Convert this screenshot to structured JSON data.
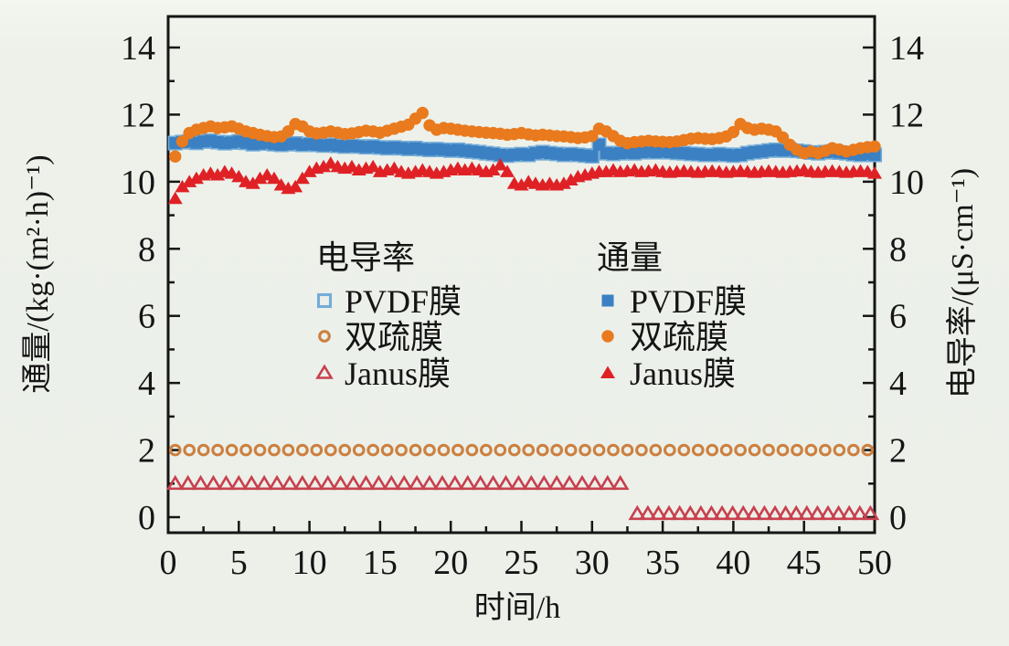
{
  "chart_data": {
    "type": "scatter",
    "title": "",
    "xlabel": "时间/h",
    "ylabel_left": "通量/(kg·(m²·h)⁻¹)",
    "ylabel_right": "电导率/(μS·cm⁻¹)",
    "xlim": [
      0,
      50
    ],
    "ylim": [
      0,
      14
    ],
    "x_major_ticks": [
      0,
      5,
      10,
      15,
      20,
      25,
      30,
      35,
      40,
      45,
      50
    ],
    "x_minor_ticks": [
      2.5,
      7.5,
      12.5,
      17.5,
      22.5,
      27.5,
      32.5,
      37.5,
      42.5,
      47.5
    ],
    "y_major_ticks": [
      0,
      2,
      4,
      6,
      8,
      10,
      12,
      14
    ],
    "y_minor_ticks": [
      1,
      3,
      5,
      7,
      9,
      11,
      13
    ],
    "grid": false,
    "legend": {
      "conductivity_header": "电导率",
      "flux_header": "通量",
      "entries": [
        "PVDF膜",
        "双疏膜",
        "Janus膜"
      ]
    },
    "series": [
      {
        "name": "电导率 PVDF膜",
        "axis": "right",
        "marker": "square",
        "filled": false,
        "color": "#74acd8",
        "note": "hidden behind flux PVDF squares",
        "x0": 0.5,
        "dx": 0.5,
        "y": [
          11.15,
          11.18,
          11.2,
          11.16,
          11.2,
          11.22,
          11.18,
          11.15,
          11.17,
          11.2,
          11.16,
          11.12,
          11.14,
          11.16,
          11.12,
          11.1,
          11.12,
          11.14,
          11.1,
          11.12,
          11.1,
          11.08,
          11.1,
          11.07,
          11.05,
          11.07,
          11.05,
          11.03,
          11.05,
          11.02,
          11.0,
          11.02,
          11.0,
          10.98,
          11.0,
          10.97,
          10.95,
          10.97,
          10.95,
          10.93,
          10.95,
          10.92,
          10.9,
          10.88,
          10.85,
          10.83,
          10.8,
          10.78,
          10.8,
          10.82,
          10.8,
          10.85,
          10.88,
          10.85,
          10.83,
          10.8,
          10.82,
          10.8,
          10.78,
          10.76,
          11.1,
          10.85,
          10.83,
          10.85,
          10.87,
          10.85,
          10.88,
          10.9,
          10.88,
          10.9,
          10.88,
          10.86,
          10.85,
          10.83,
          10.82,
          10.8,
          10.8,
          10.82,
          10.8,
          10.78,
          10.8,
          10.85,
          10.88,
          10.9,
          10.93,
          10.95,
          10.93,
          10.95,
          10.92,
          10.9,
          10.87,
          10.85,
          10.88,
          10.9,
          10.87,
          10.85,
          10.82,
          10.8,
          10.83,
          10.8
        ]
      },
      {
        "name": "通量 PVDF膜",
        "axis": "left",
        "marker": "square",
        "filled": true,
        "color": "#3b80c2",
        "x0": 0.5,
        "dx": 0.5,
        "y": [
          11.15,
          11.18,
          11.2,
          11.16,
          11.2,
          11.22,
          11.18,
          11.15,
          11.17,
          11.2,
          11.16,
          11.12,
          11.14,
          11.16,
          11.12,
          11.1,
          11.12,
          11.14,
          11.1,
          11.12,
          11.1,
          11.08,
          11.1,
          11.07,
          11.05,
          11.07,
          11.05,
          11.03,
          11.05,
          11.02,
          11.0,
          11.02,
          11.0,
          10.98,
          11.0,
          10.97,
          10.95,
          10.97,
          10.95,
          10.93,
          10.95,
          10.92,
          10.9,
          10.88,
          10.85,
          10.83,
          10.8,
          10.78,
          10.8,
          10.82,
          10.8,
          10.85,
          10.88,
          10.85,
          10.83,
          10.8,
          10.82,
          10.8,
          10.78,
          10.76,
          11.1,
          10.85,
          10.83,
          10.85,
          10.87,
          10.85,
          10.88,
          10.9,
          10.88,
          10.9,
          10.88,
          10.86,
          10.85,
          10.83,
          10.82,
          10.8,
          10.8,
          10.82,
          10.8,
          10.78,
          10.8,
          10.85,
          10.88,
          10.9,
          10.93,
          10.95,
          10.93,
          10.95,
          10.92,
          10.9,
          10.87,
          10.85,
          10.88,
          10.9,
          10.87,
          10.85,
          10.82,
          10.8,
          10.83,
          10.8
        ]
      },
      {
        "name": "通量 Janus膜",
        "axis": "left",
        "marker": "triangle",
        "filled": true,
        "color": "#df2125",
        "x0": 0.5,
        "dx": 0.5,
        "y": [
          9.5,
          9.85,
          10.0,
          10.1,
          10.2,
          10.25,
          10.2,
          10.3,
          10.25,
          10.15,
          10.0,
          9.95,
          10.1,
          10.2,
          10.1,
          9.9,
          9.8,
          9.85,
          10.1,
          10.3,
          10.4,
          10.45,
          10.55,
          10.45,
          10.4,
          10.45,
          10.35,
          10.4,
          10.45,
          10.3,
          10.35,
          10.4,
          10.3,
          10.25,
          10.3,
          10.35,
          10.3,
          10.25,
          10.3,
          10.35,
          10.4,
          10.35,
          10.4,
          10.35,
          10.3,
          10.35,
          10.5,
          10.3,
          9.95,
          9.9,
          10.0,
          9.95,
          9.9,
          9.95,
          9.9,
          9.95,
          10.05,
          10.15,
          10.2,
          10.25,
          10.3,
          10.3,
          10.35,
          10.3,
          10.32,
          10.35,
          10.3,
          10.32,
          10.35,
          10.3,
          10.28,
          10.3,
          10.32,
          10.3,
          10.28,
          10.3,
          10.32,
          10.3,
          10.28,
          10.3,
          10.32,
          10.3,
          10.28,
          10.3,
          10.32,
          10.3,
          10.28,
          10.3,
          10.32,
          10.35,
          10.3,
          10.28,
          10.3,
          10.32,
          10.3,
          10.28,
          10.3,
          10.32,
          10.3,
          10.25
        ]
      },
      {
        "name": "通量 双疏膜",
        "axis": "left",
        "marker": "circle",
        "filled": true,
        "color": "#e97a1d",
        "x0": 0.5,
        "dx": 0.5,
        "y": [
          10.75,
          11.2,
          11.45,
          11.55,
          11.6,
          11.65,
          11.6,
          11.62,
          11.65,
          11.58,
          11.5,
          11.45,
          11.4,
          11.36,
          11.33,
          11.35,
          11.5,
          11.72,
          11.65,
          11.5,
          11.44,
          11.46,
          11.5,
          11.46,
          11.42,
          11.44,
          11.48,
          11.52,
          11.5,
          11.46,
          11.52,
          11.58,
          11.64,
          11.7,
          11.88,
          12.05,
          11.68,
          11.55,
          11.6,
          11.58,
          11.55,
          11.52,
          11.5,
          11.48,
          11.46,
          11.45,
          11.43,
          11.4,
          11.42,
          11.45,
          11.41,
          11.38,
          11.4,
          11.38,
          11.36,
          11.35,
          11.33,
          11.3,
          11.32,
          11.36,
          11.58,
          11.5,
          11.36,
          11.22,
          11.15,
          11.18,
          11.2,
          11.22,
          11.2,
          11.19,
          11.18,
          11.2,
          11.24,
          11.28,
          11.3,
          11.28,
          11.27,
          11.3,
          11.35,
          11.48,
          11.72,
          11.6,
          11.55,
          11.58,
          11.55,
          11.5,
          11.32,
          11.1,
          10.95,
          10.85,
          10.9,
          10.85,
          10.92,
          11.0,
          10.96,
          10.9,
          10.95,
          11.0,
          11.03,
          11.05
        ]
      },
      {
        "name": "电导率 双疏膜",
        "axis": "right",
        "marker": "circle",
        "filled": false,
        "color": "#cc8040",
        "x0": 0.5,
        "dx": 1.0,
        "y": [
          2,
          2,
          2,
          2,
          2,
          2,
          2,
          2,
          2,
          2,
          2,
          2,
          2,
          2,
          2,
          2,
          2,
          2,
          2,
          2,
          2,
          2,
          2,
          2,
          2,
          2,
          2,
          2,
          2,
          2,
          2,
          2,
          2,
          2,
          2,
          2,
          2,
          2,
          2,
          2,
          2,
          2,
          2,
          2,
          2,
          2,
          2,
          2,
          2,
          2
        ]
      },
      {
        "name": "电导率 Janus膜 (0-32h)",
        "axis": "right",
        "marker": "triangle",
        "filled": false,
        "color": "#c8404e",
        "x0": 0.5,
        "dx": 0.9,
        "y": [
          1,
          1,
          1,
          1,
          1,
          1,
          1,
          1,
          1,
          1,
          1,
          1,
          1,
          1,
          1,
          1,
          1,
          1,
          1,
          1,
          1,
          1,
          1,
          1,
          1,
          1,
          1,
          1,
          1,
          1,
          1,
          1,
          1,
          1,
          1,
          1
        ]
      },
      {
        "name": "电导率 Janus膜 (33-50h)",
        "axis": "right",
        "marker": "triangle",
        "filled": false,
        "color": "#c8404e",
        "x0": 33.2,
        "dx": 0.75,
        "y": [
          0.1,
          0.1,
          0.1,
          0.1,
          0.1,
          0.1,
          0.1,
          0.1,
          0.1,
          0.1,
          0.1,
          0.1,
          0.1,
          0.1,
          0.1,
          0.1,
          0.1,
          0.1,
          0.1,
          0.1,
          0.1,
          0.1,
          0.1
        ]
      }
    ]
  },
  "colors": {
    "background": "#edf1ea",
    "axis": "#151515",
    "flux_pvdf": "#3b80c2",
    "flux_shushu": "#e97a1d",
    "flux_janus": "#df2125",
    "cond_pvdf": "#74acd8",
    "cond_shushu": "#cc8040",
    "cond_janus": "#c8404e"
  }
}
